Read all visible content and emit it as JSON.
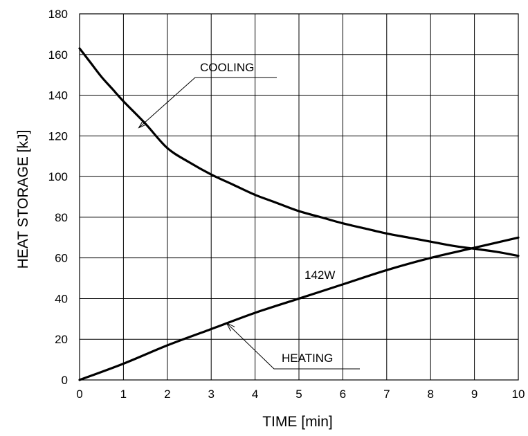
{
  "chart_data": {
    "type": "line",
    "xlabel": "TIME  [min]",
    "ylabel": "HEAT STORAGE  [kJ]",
    "xlim": [
      0,
      10
    ],
    "ylim": [
      0,
      180
    ],
    "x_ticks": [
      0,
      1,
      2,
      3,
      4,
      5,
      6,
      7,
      8,
      9,
      10
    ],
    "y_ticks": [
      0,
      20,
      40,
      60,
      80,
      100,
      120,
      140,
      160,
      180
    ],
    "grid": true,
    "series": [
      {
        "name": "COOLING",
        "x": [
          0,
          0.25,
          0.5,
          0.75,
          1,
          1.5,
          2,
          2.5,
          3,
          3.5,
          4,
          4.5,
          5,
          5.5,
          6,
          6.5,
          7,
          7.5,
          8,
          8.5,
          9,
          9.5,
          10
        ],
        "y": [
          163,
          156,
          149,
          143,
          137,
          126,
          114,
          107,
          101,
          96,
          91,
          87,
          83,
          80,
          77,
          74.5,
          72,
          70,
          68,
          66,
          64.5,
          63,
          61
        ]
      },
      {
        "name": "HEATING",
        "x": [
          0,
          1,
          2,
          3,
          4,
          5,
          6,
          7,
          8,
          9,
          10
        ],
        "y": [
          0,
          8,
          17,
          25,
          33,
          40,
          47,
          54,
          60,
          65,
          70
        ]
      }
    ],
    "annotations": [
      {
        "text": "COOLING",
        "points_to": {
          "series": "COOLING",
          "x": 1.35,
          "y": 124
        }
      },
      {
        "text": "HEATING",
        "points_to": {
          "series": "HEATING",
          "x": 3.35,
          "y": 28
        }
      },
      {
        "text": "142W",
        "near": {
          "series": "HEATING",
          "x": 5.3
        }
      }
    ]
  }
}
